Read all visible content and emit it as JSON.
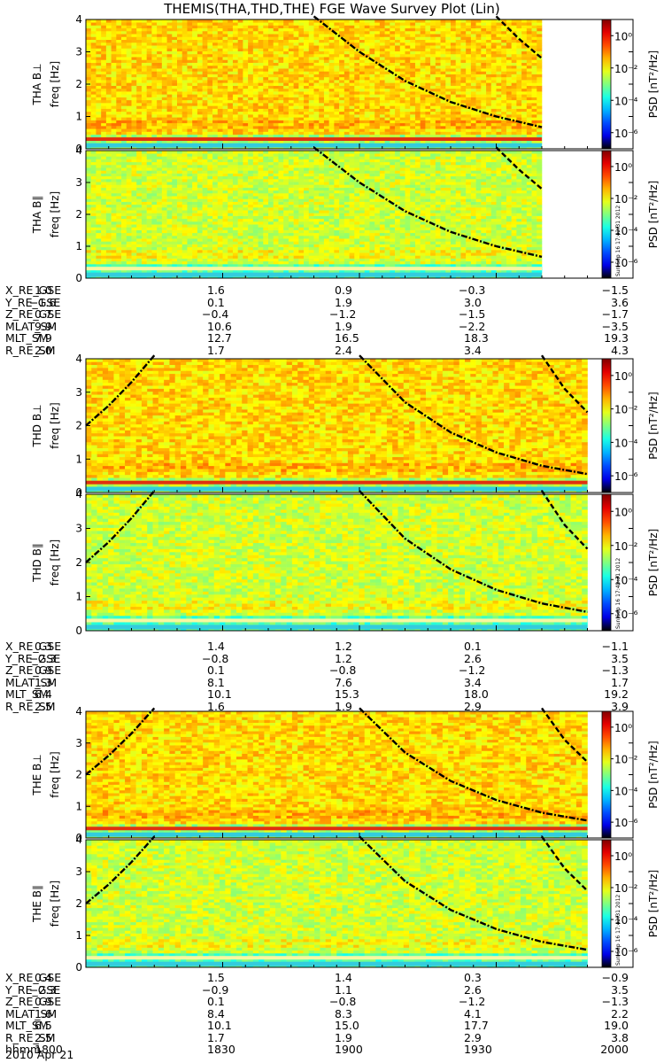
{
  "title": "THEMIS(THA,THD,THE) FGE Wave Survey Plot (Lin)",
  "chart_data": [
    {
      "type": "heatmap",
      "panel": "THA B⊥",
      "ylabel": "THA B⊥",
      "ylabel2": "freq [Hz]",
      "ylim": [
        0,
        4
      ],
      "yticks": [
        "0",
        "1",
        "2",
        "3",
        "4"
      ],
      "xlim": [
        "18:00",
        "20:00"
      ],
      "data_end": "19:40",
      "colorbar": {
        "label": "PSD [nT²/Hz]",
        "ticks": [
          "10⁰",
          "10⁻²",
          "10⁻⁴",
          "10⁻⁶"
        ],
        "range_log10": [
          -7,
          1
        ]
      },
      "noise_level": "high",
      "curves": [
        {
          "style": "dash-dot",
          "x": [
            "18:50",
            "19:00",
            "19:10",
            "19:20",
            "19:30",
            "19:40"
          ],
          "y_hz": [
            4.1,
            3.0,
            2.1,
            1.45,
            1.0,
            0.67
          ]
        },
        {
          "style": "dashed",
          "x": [
            "19:30",
            "19:35",
            "19:40"
          ],
          "y_hz": [
            4.1,
            3.4,
            2.8
          ]
        }
      ]
    },
    {
      "type": "heatmap",
      "panel": "THA B∥",
      "ylabel": "THA B∥",
      "ylabel2": "freq [Hz]",
      "ylim": [
        0,
        4
      ],
      "yticks": [
        "0",
        "1",
        "2",
        "3",
        "4"
      ],
      "xlim": [
        "18:00",
        "20:00"
      ],
      "data_end": "19:40",
      "colorbar": {
        "label": "PSD [nT²/Hz]",
        "ticks": [
          "10⁰",
          "10⁻²",
          "10⁻⁴",
          "10⁻⁶"
        ],
        "range_log10": [
          -7,
          1
        ]
      },
      "noise_level": "low",
      "curves": [
        {
          "style": "dash-dot",
          "x": [
            "18:50",
            "19:00",
            "19:10",
            "19:20",
            "19:30",
            "19:40"
          ],
          "y_hz": [
            4.1,
            3.0,
            2.1,
            1.45,
            1.0,
            0.67
          ]
        },
        {
          "style": "dashed",
          "x": [
            "19:30",
            "19:35",
            "19:40"
          ],
          "y_hz": [
            4.1,
            3.4,
            2.8
          ]
        }
      ],
      "timestamp": "Sun Sep 16 17:42:31 2012"
    },
    {
      "type": "heatmap",
      "panel": "THD B⊥",
      "ylabel": "THD B⊥",
      "ylabel2": "freq [Hz]",
      "ylim": [
        0,
        4
      ],
      "yticks": [
        "0",
        "1",
        "2",
        "3",
        "4"
      ],
      "xlim": [
        "18:00",
        "20:00"
      ],
      "data_end": "19:50",
      "colorbar": {
        "label": "PSD [nT²/Hz]",
        "ticks": [
          "10⁰",
          "10⁻²",
          "10⁻⁴",
          "10⁻⁶"
        ],
        "range_log10": [
          -7,
          1
        ]
      },
      "noise_level": "high",
      "curves": [
        {
          "style": "dash-dot",
          "x": [
            "18:00",
            "18:05",
            "18:10",
            "18:15"
          ],
          "y_hz": [
            2.0,
            2.6,
            3.3,
            4.1
          ]
        },
        {
          "style": "dash-dot",
          "x": [
            "19:00",
            "19:10",
            "19:20",
            "19:30",
            "19:40",
            "19:50"
          ],
          "y_hz": [
            4.1,
            2.7,
            1.8,
            1.2,
            0.8,
            0.55
          ]
        },
        {
          "style": "dashed",
          "x": [
            "19:40",
            "19:45",
            "19:50"
          ],
          "y_hz": [
            4.1,
            3.1,
            2.4
          ]
        }
      ]
    },
    {
      "type": "heatmap",
      "panel": "THD B∥",
      "ylabel": "THD B∥",
      "ylabel2": "freq [Hz]",
      "ylim": [
        0,
        4
      ],
      "yticks": [
        "0",
        "1",
        "2",
        "3",
        "4"
      ],
      "xlim": [
        "18:00",
        "20:00"
      ],
      "data_end": "19:50",
      "colorbar": {
        "label": "PSD [nT²/Hz]",
        "ticks": [
          "10⁰",
          "10⁻²",
          "10⁻⁴",
          "10⁻⁶"
        ],
        "range_log10": [
          -7,
          1
        ]
      },
      "noise_level": "low",
      "curves": [
        {
          "style": "dash-dot",
          "x": [
            "18:00",
            "18:05",
            "18:10",
            "18:15"
          ],
          "y_hz": [
            2.0,
            2.6,
            3.3,
            4.1
          ]
        },
        {
          "style": "dash-dot",
          "x": [
            "19:00",
            "19:10",
            "19:20",
            "19:30",
            "19:40",
            "19:50"
          ],
          "y_hz": [
            4.1,
            2.7,
            1.8,
            1.2,
            0.8,
            0.55
          ]
        },
        {
          "style": "dashed",
          "x": [
            "19:40",
            "19:45",
            "19:50"
          ],
          "y_hz": [
            4.1,
            3.1,
            2.4
          ]
        }
      ],
      "timestamp": "Sun Sep 16 17:42:31 2012"
    },
    {
      "type": "heatmap",
      "panel": "THE B⊥",
      "ylabel": "THE B⊥",
      "ylabel2": "freq [Hz]",
      "ylim": [
        0,
        4
      ],
      "yticks": [
        "0",
        "1",
        "2",
        "3",
        "4"
      ],
      "xlim": [
        "18:00",
        "20:00"
      ],
      "data_end": "19:50",
      "colorbar": {
        "label": "PSD [nT²/Hz]",
        "ticks": [
          "10⁰",
          "10⁻²",
          "10⁻⁴",
          "10⁻⁶"
        ],
        "range_log10": [
          -7,
          1
        ]
      },
      "noise_level": "high",
      "curves": [
        {
          "style": "dash-dot",
          "x": [
            "18:00",
            "18:05",
            "18:10",
            "18:15"
          ],
          "y_hz": [
            2.0,
            2.6,
            3.3,
            4.1
          ]
        },
        {
          "style": "dash-dot",
          "x": [
            "19:00",
            "19:10",
            "19:20",
            "19:30",
            "19:40",
            "19:50"
          ],
          "y_hz": [
            4.1,
            2.7,
            1.8,
            1.2,
            0.8,
            0.55
          ]
        },
        {
          "style": "dashed",
          "x": [
            "19:40",
            "19:45",
            "19:50"
          ],
          "y_hz": [
            4.1,
            3.1,
            2.4
          ]
        }
      ]
    },
    {
      "type": "heatmap",
      "panel": "THE B∥",
      "ylabel": "THE B∥",
      "ylabel2": "freq [Hz]",
      "ylim": [
        0,
        4
      ],
      "yticks": [
        "0",
        "1",
        "2",
        "3",
        "4"
      ],
      "xlim": [
        "18:00",
        "20:00"
      ],
      "data_end": "19:50",
      "colorbar": {
        "label": "PSD [nT²/Hz]",
        "ticks": [
          "10⁰",
          "10⁻²",
          "10⁻⁴",
          "10⁻⁶"
        ],
        "range_log10": [
          -7,
          1
        ]
      },
      "noise_level": "low",
      "curves": [
        {
          "style": "dash-dot",
          "x": [
            "18:00",
            "18:05",
            "18:10",
            "18:15"
          ],
          "y_hz": [
            2.0,
            2.6,
            3.3,
            4.1
          ]
        },
        {
          "style": "dash-dot",
          "x": [
            "19:00",
            "19:10",
            "19:20",
            "19:30",
            "19:40",
            "19:50"
          ],
          "y_hz": [
            4.1,
            2.7,
            1.8,
            1.2,
            0.8,
            0.55
          ]
        },
        {
          "style": "dashed",
          "x": [
            "19:40",
            "19:45",
            "19:50"
          ],
          "y_hz": [
            4.1,
            3.1,
            2.4
          ]
        }
      ],
      "timestamp": "Sun Sep 16 17:42:31 2012"
    }
  ],
  "ephemeris": [
    {
      "spacecraft": "THA",
      "rows": [
        {
          "name": "X_RE_GSE",
          "values": [
            "1.0",
            "1.6",
            "0.9",
            "-0.3",
            "-1.5"
          ]
        },
        {
          "name": "Y_RE_GSE",
          "values": [
            "-1.6",
            "0.1",
            "1.9",
            "3.0",
            "3.6"
          ]
        },
        {
          "name": "Z_RE_GSE",
          "values": [
            "0.7",
            "-0.4",
            "-1.2",
            "-1.5",
            "-1.7"
          ]
        },
        {
          "name": "MLAT_SM",
          "values": [
            "9.9",
            "10.6",
            "1.9",
            "-2.2",
            "-3.5"
          ]
        },
        {
          "name": "MLT_SM",
          "values": [
            "7.9",
            "12.7",
            "16.5",
            "18.3",
            "19.3"
          ]
        },
        {
          "name": "R_RE_SM",
          "values": [
            "2.0",
            "1.7",
            "2.4",
            "3.4",
            "4.3"
          ]
        }
      ]
    },
    {
      "spacecraft": "THD",
      "rows": [
        {
          "name": "X_RE_GSE",
          "values": [
            "0.3",
            "1.4",
            "1.2",
            "0.1",
            "-1.1"
          ]
        },
        {
          "name": "Y_RE_GSE",
          "values": [
            "-2.3",
            "-0.8",
            "1.2",
            "2.6",
            "3.5"
          ]
        },
        {
          "name": "Z_RE_GSE",
          "values": [
            "0.9",
            "0.1",
            "-0.8",
            "-1.2",
            "-1.3"
          ]
        },
        {
          "name": "MLAT_SM",
          "values": [
            "1.3",
            "8.1",
            "7.6",
            "3.4",
            "1.7"
          ]
        },
        {
          "name": "MLT_SM",
          "values": [
            "6.4",
            "10.1",
            "15.3",
            "18.0",
            "19.2"
          ]
        },
        {
          "name": "R_RE_SM",
          "values": [
            "2.5",
            "1.6",
            "1.9",
            "2.9",
            "3.9"
          ]
        }
      ]
    },
    {
      "spacecraft": "THE",
      "rows": [
        {
          "name": "X_RE_GSE",
          "values": [
            "0.4",
            "1.5",
            "1.4",
            "0.3",
            "-0.9"
          ]
        },
        {
          "name": "Y_RE_GSE",
          "values": [
            "-2.3",
            "-0.9",
            "1.1",
            "2.6",
            "3.5"
          ]
        },
        {
          "name": "Z_RE_GSE",
          "values": [
            "0.9",
            "0.1",
            "-0.8",
            "-1.2",
            "-1.3"
          ]
        },
        {
          "name": "MLAT_SM",
          "values": [
            "1.6",
            "8.4",
            "8.3",
            "4.1",
            "2.2"
          ]
        },
        {
          "name": "MLT_SM",
          "values": [
            "6.5",
            "10.1",
            "15.0",
            "17.7",
            "19.0"
          ]
        },
        {
          "name": "R_RE_SM",
          "values": [
            "2.5",
            "1.7",
            "1.9",
            "2.9",
            "3.8"
          ]
        },
        {
          "name": "hhmm",
          "values": [
            "1800",
            "1830",
            "1900",
            "1930",
            "2000"
          ]
        }
      ]
    }
  ],
  "date": "2010 Apr 21"
}
